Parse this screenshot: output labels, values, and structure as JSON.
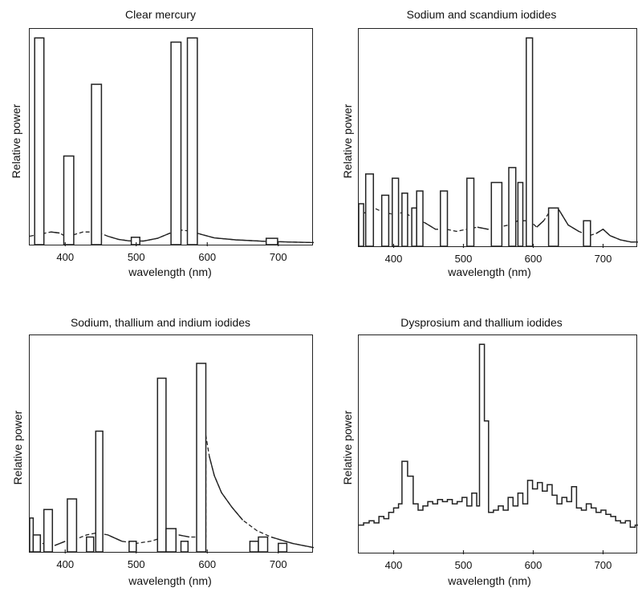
{
  "chart_data": [
    {
      "type": "line",
      "title": "Clear mercury",
      "xlabel": "wavelength (nm)",
      "ylabel": "Relative power",
      "xlim": [
        350,
        750
      ],
      "ylim": [
        0,
        100
      ],
      "xticks": [
        400,
        500,
        600,
        700
      ],
      "bars": [
        {
          "x0": 357,
          "x1": 370,
          "h": 98
        },
        {
          "x0": 398,
          "x1": 412,
          "h": 42
        },
        {
          "x0": 437,
          "x1": 451,
          "h": 76
        },
        {
          "x0": 493,
          "x1": 505,
          "h": 3.5
        },
        {
          "x0": 549,
          "x1": 563,
          "h": 96
        },
        {
          "x0": 572,
          "x1": 586,
          "h": 98
        },
        {
          "x0": 683,
          "x1": 699,
          "h": 3
        }
      ],
      "continuum": [
        [
          350,
          4
        ],
        [
          365,
          5
        ],
        [
          380,
          6
        ],
        [
          392,
          5.5
        ],
        [
          400,
          4
        ],
        [
          410,
          4.5
        ],
        [
          425,
          6
        ],
        [
          445,
          6
        ],
        [
          460,
          4
        ],
        [
          475,
          2.5
        ],
        [
          490,
          1.8
        ],
        [
          510,
          1.7
        ],
        [
          530,
          3
        ],
        [
          548,
          5.5
        ],
        [
          560,
          7
        ],
        [
          575,
          6.5
        ],
        [
          590,
          5
        ],
        [
          610,
          3.2
        ],
        [
          640,
          2.3
        ],
        [
          680,
          1.6
        ],
        [
          720,
          1.2
        ],
        [
          750,
          1
        ]
      ]
    },
    {
      "type": "line",
      "title": "Sodium and scandium iodides",
      "xlabel": "wavelength (nm)",
      "ylabel": "Relative power",
      "xlim": [
        350,
        750
      ],
      "ylim": [
        0,
        100
      ],
      "xticks": [
        400,
        500,
        600,
        700
      ],
      "bars": [
        {
          "x0": 350,
          "x1": 357,
          "h": 20
        },
        {
          "x0": 360,
          "x1": 371,
          "h": 34
        },
        {
          "x0": 383,
          "x1": 393,
          "h": 24
        },
        {
          "x0": 398,
          "x1": 407,
          "h": 32
        },
        {
          "x0": 412,
          "x1": 420,
          "h": 25
        },
        {
          "x0": 426,
          "x1": 433,
          "h": 18
        },
        {
          "x0": 433,
          "x1": 442,
          "h": 26
        },
        {
          "x0": 467,
          "x1": 477,
          "h": 26
        },
        {
          "x0": 505,
          "x1": 515,
          "h": 32
        },
        {
          "x0": 540,
          "x1": 555,
          "h": 30
        },
        {
          "x0": 565,
          "x1": 575,
          "h": 37
        },
        {
          "x0": 578,
          "x1": 585,
          "h": 30
        },
        {
          "x0": 590,
          "x1": 599,
          "h": 98
        },
        {
          "x0": 622,
          "x1": 636,
          "h": 18
        },
        {
          "x0": 672,
          "x1": 682,
          "h": 12
        }
      ],
      "continuum": [
        [
          350,
          14
        ],
        [
          360,
          16
        ],
        [
          372,
          18
        ],
        [
          385,
          16
        ],
        [
          400,
          15
        ],
        [
          415,
          16
        ],
        [
          430,
          13
        ],
        [
          445,
          11
        ],
        [
          460,
          8
        ],
        [
          475,
          8
        ],
        [
          490,
          7
        ],
        [
          505,
          8
        ],
        [
          520,
          9
        ],
        [
          535,
          8
        ],
        [
          550,
          9
        ],
        [
          565,
          10
        ],
        [
          578,
          12
        ],
        [
          595,
          12
        ],
        [
          605,
          9
        ],
        [
          615,
          12
        ],
        [
          625,
          17
        ],
        [
          637,
          17
        ],
        [
          650,
          10
        ],
        [
          665,
          7
        ],
        [
          680,
          5
        ],
        [
          690,
          6
        ],
        [
          700,
          8
        ],
        [
          710,
          5
        ],
        [
          725,
          3
        ],
        [
          740,
          2
        ],
        [
          750,
          2
        ]
      ]
    },
    {
      "type": "line",
      "title": "Sodium, thallium and indium iodides",
      "xlabel": "wavelength (nm)",
      "ylabel": "Relative power",
      "xlim": [
        350,
        750
      ],
      "ylim": [
        0,
        100
      ],
      "xticks": [
        400,
        500,
        600,
        700
      ],
      "bars": [
        {
          "x0": 350,
          "x1": 355,
          "h": 16
        },
        {
          "x0": 355,
          "x1": 365,
          "h": 8
        },
        {
          "x0": 370,
          "x1": 382,
          "h": 20
        },
        {
          "x0": 403,
          "x1": 416,
          "h": 25
        },
        {
          "x0": 430,
          "x1": 440,
          "h": 7
        },
        {
          "x0": 443,
          "x1": 453,
          "h": 57
        },
        {
          "x0": 490,
          "x1": 500,
          "h": 5
        },
        {
          "x0": 530,
          "x1": 542,
          "h": 82
        },
        {
          "x0": 542,
          "x1": 556,
          "h": 11
        },
        {
          "x0": 563,
          "x1": 573,
          "h": 5
        },
        {
          "x0": 585,
          "x1": 598,
          "h": 89
        },
        {
          "x0": 660,
          "x1": 672,
          "h": 5
        },
        {
          "x0": 672,
          "x1": 685,
          "h": 7
        },
        {
          "x0": 700,
          "x1": 712,
          "h": 4
        }
      ],
      "continuum": [
        [
          350,
          3
        ],
        [
          370,
          4
        ],
        [
          385,
          3
        ],
        [
          400,
          5
        ],
        [
          415,
          6
        ],
        [
          430,
          8
        ],
        [
          445,
          9
        ],
        [
          460,
          8
        ],
        [
          480,
          5
        ],
        [
          500,
          4
        ],
        [
          520,
          5
        ],
        [
          540,
          7
        ],
        [
          560,
          8
        ],
        [
          575,
          7
        ],
        [
          598,
          7
        ],
        [
          598,
          55
        ],
        [
          603,
          45
        ],
        [
          610,
          36
        ],
        [
          620,
          28
        ],
        [
          635,
          21
        ],
        [
          650,
          15
        ],
        [
          670,
          10
        ],
        [
          690,
          7
        ],
        [
          720,
          4
        ],
        [
          750,
          2
        ]
      ],
      "continuum_start_solid_at": 598
    },
    {
      "type": "line",
      "title": "Dysprosium and thallium iodides",
      "xlabel": "wavelength (nm)",
      "ylabel": "Relative power",
      "xlim": [
        350,
        750
      ],
      "ylim": [
        0,
        100
      ],
      "xticks": [
        400,
        500,
        600,
        700
      ],
      "steps": [
        [
          350,
          13
        ],
        [
          357,
          14
        ],
        [
          365,
          15
        ],
        [
          372,
          14
        ],
        [
          379,
          17
        ],
        [
          386,
          16
        ],
        [
          393,
          19
        ],
        [
          400,
          21
        ],
        [
          407,
          23
        ],
        [
          412,
          43
        ],
        [
          420,
          36
        ],
        [
          428,
          23
        ],
        [
          435,
          20
        ],
        [
          442,
          22
        ],
        [
          449,
          24
        ],
        [
          456,
          23
        ],
        [
          463,
          25
        ],
        [
          470,
          24
        ],
        [
          477,
          25
        ],
        [
          484,
          23
        ],
        [
          491,
          24
        ],
        [
          498,
          26
        ],
        [
          505,
          22
        ],
        [
          512,
          28
        ],
        [
          519,
          22
        ],
        [
          523,
          98
        ],
        [
          530,
          62
        ],
        [
          536,
          19
        ],
        [
          543,
          20
        ],
        [
          550,
          22
        ],
        [
          557,
          20
        ],
        [
          564,
          26
        ],
        [
          571,
          22
        ],
        [
          578,
          28
        ],
        [
          585,
          23
        ],
        [
          592,
          34
        ],
        [
          599,
          30
        ],
        [
          606,
          33
        ],
        [
          613,
          29
        ],
        [
          620,
          32
        ],
        [
          627,
          27
        ],
        [
          634,
          23
        ],
        [
          641,
          26
        ],
        [
          648,
          24
        ],
        [
          655,
          31
        ],
        [
          662,
          21
        ],
        [
          669,
          20
        ],
        [
          676,
          23
        ],
        [
          683,
          21
        ],
        [
          690,
          19
        ],
        [
          697,
          20
        ],
        [
          704,
          18
        ],
        [
          711,
          17
        ],
        [
          718,
          15
        ],
        [
          725,
          14
        ],
        [
          732,
          15
        ],
        [
          739,
          12
        ],
        [
          746,
          13
        ],
        [
          750,
          13
        ]
      ]
    }
  ]
}
